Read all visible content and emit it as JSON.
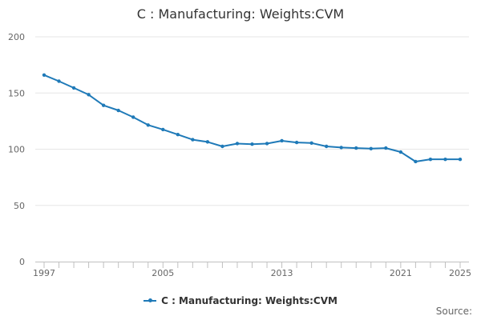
{
  "chart_data": {
    "type": "line",
    "title": "C : Manufacturing: Weights:CVM",
    "xlabel": "",
    "ylabel": "",
    "ylim": [
      0,
      200
    ],
    "yticks": [
      0,
      50,
      100,
      150,
      200
    ],
    "xlim": [
      1997,
      2025
    ],
    "xticks": [
      1997,
      2005,
      2013,
      2021,
      2025
    ],
    "grid": true,
    "legend_position": "bottom",
    "series": [
      {
        "name": "C : Manufacturing: Weights:CVM",
        "color": "#1f7ab8",
        "x": [
          1997,
          1998,
          1999,
          2000,
          2001,
          2002,
          2003,
          2004,
          2005,
          2006,
          2007,
          2008,
          2009,
          2010,
          2011,
          2012,
          2013,
          2014,
          2015,
          2016,
          2017,
          2018,
          2019,
          2020,
          2021,
          2022,
          2023,
          2024,
          2025
        ],
        "values": [
          166,
          160.5,
          154.5,
          148.5,
          139,
          134.5,
          128.5,
          121.5,
          117.5,
          113,
          108.5,
          106.5,
          102.5,
          105,
          104.5,
          105,
          107.5,
          106,
          105.5,
          102.5,
          101.5,
          101,
          100.5,
          101,
          97.5,
          89,
          91,
          91,
          91
        ]
      }
    ]
  },
  "source_label": "Source:"
}
